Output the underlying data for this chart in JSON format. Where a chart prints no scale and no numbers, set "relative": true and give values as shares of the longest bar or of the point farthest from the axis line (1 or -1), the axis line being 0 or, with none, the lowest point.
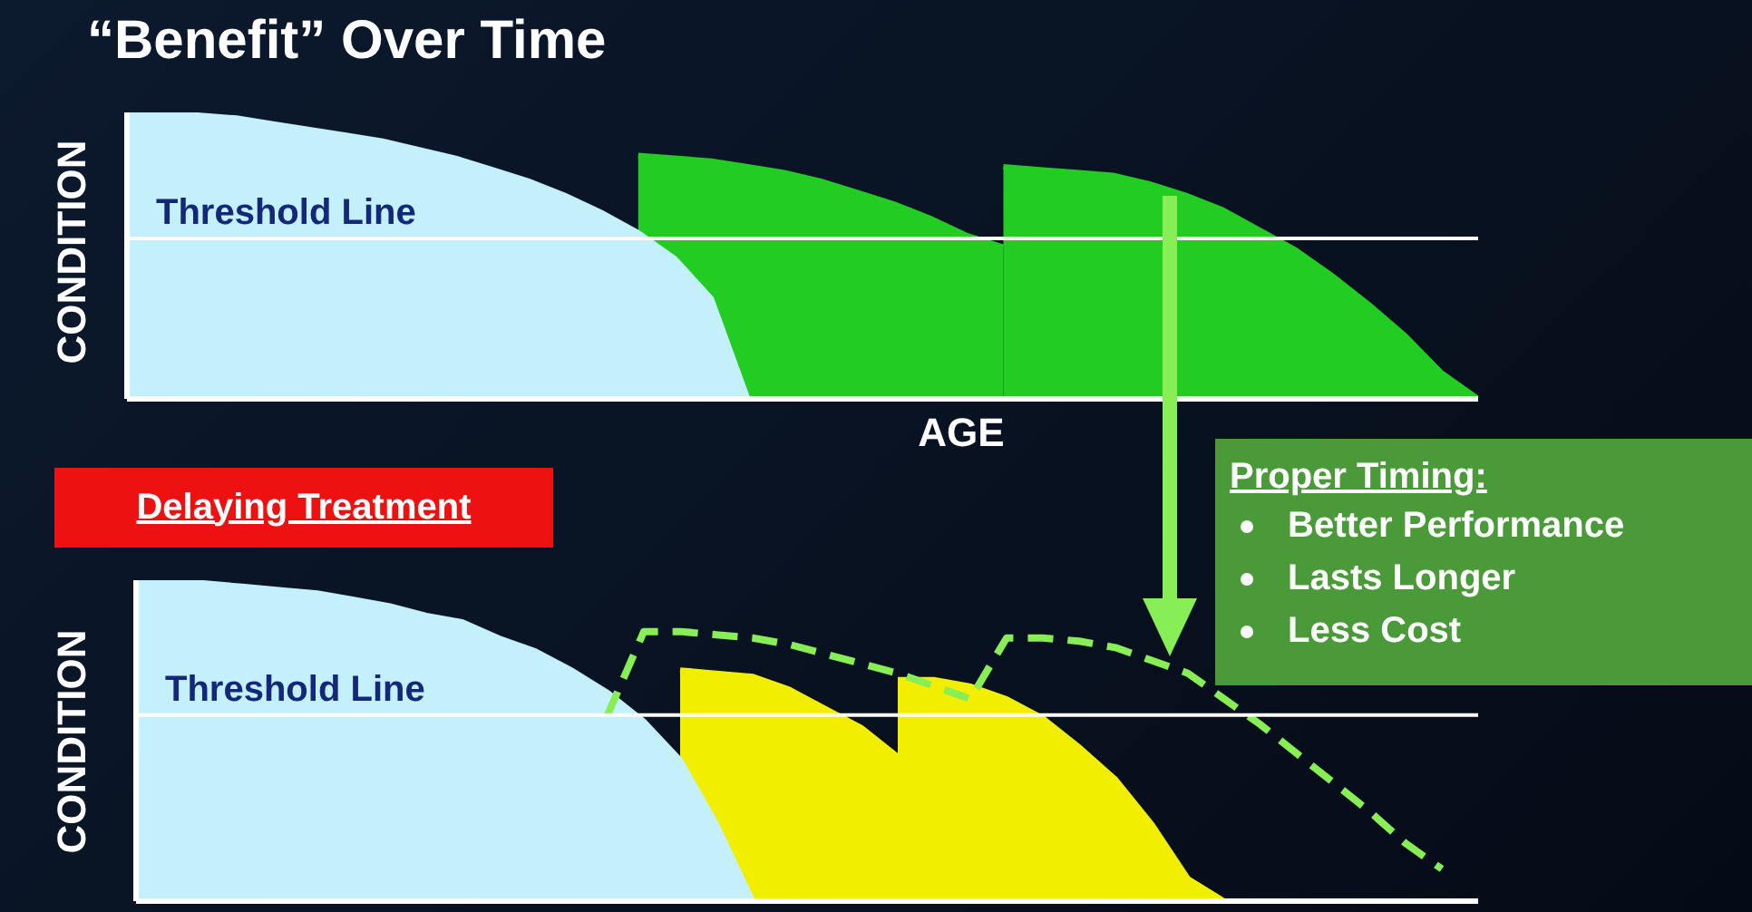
{
  "chart_data": [
    {
      "type": "area",
      "title": "“Benefit” Over Time",
      "xlabel": "AGE",
      "ylabel": "CONDITION",
      "relative": true,
      "tick_labels": false,
      "categories": [
        null,
        null,
        null,
        null,
        null,
        null,
        null,
        null,
        null,
        null,
        null,
        null,
        null,
        null,
        null,
        null,
        null,
        null,
        null,
        null,
        null,
        null,
        null,
        null,
        null,
        null,
        null,
        null,
        null,
        null,
        null,
        null,
        null,
        null,
        null,
        null,
        null,
        null
      ],
      "series": [
        {
          "color": "#22cc22",
          "values": [
            null,
            null,
            null,
            null,
            null,
            null,
            null,
            null,
            null,
            null,
            null,
            null,
            null,
            null,
            0.85,
            0.84,
            0.83,
            0.81,
            0.79,
            0.76,
            0.72,
            0.68,
            0.63,
            0.57,
            0.53,
            null,
            null,
            null,
            null,
            null,
            null,
            null,
            null,
            null,
            null,
            null,
            null,
            null
          ]
        },
        {
          "color": "#22cc22",
          "values": [
            null,
            null,
            null,
            null,
            null,
            null,
            null,
            null,
            null,
            null,
            null,
            null,
            null,
            null,
            null,
            null,
            null,
            null,
            null,
            null,
            null,
            null,
            null,
            null,
            0.81,
            0.8,
            0.79,
            0.78,
            0.75,
            0.71,
            0.66,
            0.59,
            0.52,
            0.43,
            0.33,
            0.22,
            0.09,
            0
          ]
        },
        {
          "color": "#c4f0fb",
          "values": [
            1,
            1,
            0.99,
            0.98,
            0.96,
            0.94,
            0.92,
            0.9,
            0.87,
            0.84,
            0.8,
            0.76,
            0.71,
            0.65,
            0.58,
            0.49,
            0.35,
            0,
            null,
            null,
            null,
            null,
            null,
            null,
            null,
            null,
            null,
            null,
            null,
            null,
            null,
            null,
            null,
            null,
            null,
            null,
            null,
            null
          ]
        }
      ],
      "ref_lines": [
        {
          "axis": "y",
          "value": 0.56,
          "label": "Threshold Line",
          "color": "#ffffff"
        }
      ],
      "annotations": [
        "Proper Timing:",
        "Better Performance",
        "Lasts Longer",
        "Less Cost"
      ]
    },
    {
      "type": "area",
      "ylabel": "CONDITION",
      "relative": true,
      "tick_labels": false,
      "categories": [
        null,
        null,
        null,
        null,
        null,
        null,
        null,
        null,
        null,
        null,
        null,
        null,
        null,
        null,
        null,
        null,
        null,
        null,
        null,
        null,
        null,
        null,
        null,
        null,
        null,
        null,
        null,
        null,
        null,
        null,
        null,
        null,
        null,
        null,
        null,
        null,
        null,
        null
      ],
      "series": [
        {
          "color": "#f2ee00",
          "values": [
            null,
            null,
            null,
            null,
            null,
            null,
            null,
            null,
            null,
            null,
            null,
            null,
            null,
            null,
            null,
            0.72,
            0.71,
            0.7,
            0.66,
            0.6,
            0.54,
            0.45,
            null,
            null,
            null,
            null,
            null,
            null,
            null,
            null,
            null,
            null,
            null,
            null,
            null,
            null,
            null,
            null
          ]
        },
        {
          "color": "#f2ee00",
          "values": [
            null,
            null,
            null,
            null,
            null,
            null,
            null,
            null,
            null,
            null,
            null,
            null,
            null,
            null,
            null,
            null,
            null,
            null,
            null,
            null,
            null,
            0.69,
            0.69,
            0.67,
            0.63,
            0.57,
            0.48,
            0.38,
            0.24,
            0.07,
            0,
            null,
            null,
            null,
            null,
            null,
            null,
            null
          ]
        },
        {
          "color": "#c4f0fb",
          "values": [
            1,
            1,
            0.99,
            0.98,
            0.97,
            0.96,
            0.94,
            0.92,
            0.89,
            0.87,
            0.82,
            0.78,
            0.72,
            0.65,
            0.56,
            0.44,
            0.24,
            0,
            null,
            null,
            null,
            null,
            null,
            null,
            null,
            null,
            null,
            null,
            null,
            null,
            null,
            null,
            null,
            null,
            null,
            null,
            null,
            null
          ]
        },
        {
          "type": "line",
          "line_style": "dashed",
          "marker": "none",
          "color": "#88ee55",
          "values": [
            null,
            null,
            null,
            null,
            null,
            null,
            null,
            null,
            null,
            null,
            null,
            null,
            null,
            0.58,
            0.84,
            0.84,
            0.83,
            0.82,
            0.8,
            0.77,
            0.74,
            0.71,
            0.67,
            0.63,
            0.82,
            0.82,
            0.81,
            0.79,
            0.75,
            0.71,
            0.63,
            0.55,
            0.46,
            0.37,
            0.28,
            0.18,
            0.1,
            null
          ]
        }
      ],
      "ref_lines": [
        {
          "axis": "y",
          "value": 0.58,
          "label": "Threshold Line",
          "color": "#ffffff"
        }
      ],
      "annotations": [
        "Delaying Treatment"
      ]
    }
  ]
}
